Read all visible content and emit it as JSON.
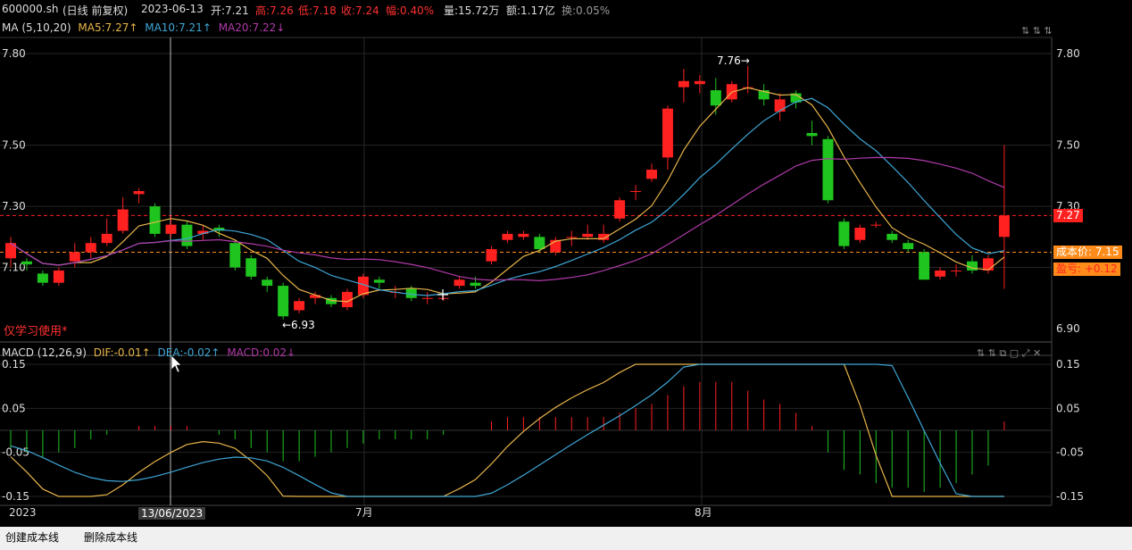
{
  "info": {
    "symbol": "600000.sh",
    "period": "(日线 前复权)",
    "date": "2023-06-13",
    "open": "开:7.21",
    "high": "高:7.26",
    "low": "低:7.18",
    "close": "收:7.24",
    "change": "幅:0.40%",
    "volume": "量:15.72万",
    "amount": "额:1.17亿",
    "turnover": "换:0.05%"
  },
  "ma_legend": {
    "title": "MA (5,10,20)",
    "ma5": "MA5:7.27↑",
    "ma10": "MA10:7.21↑",
    "ma20": "MA20:7.22↓"
  },
  "macd_legend": {
    "title": "MACD (12,26,9)",
    "dif": "DIF:-0.01↑",
    "dea": "DEA:-0.02↑",
    "macd": "MACD:0.02↓"
  },
  "colors": {
    "up": "#ff2020",
    "down": "#1fc41f",
    "ma5": "#e8b54a",
    "ma10": "#3ea6d6",
    "ma20": "#b03aa8",
    "cost": "#ff8c1a",
    "last": "#ff2020"
  },
  "annotations": {
    "high_label": "7.76→",
    "low_label": "←6.93",
    "watermark": "仅学习使用*",
    "cross_date": "13/06/2023",
    "last_price": "7.27",
    "cost_price": "成本价: 7.15",
    "profit": "盈亏: +0.12"
  },
  "buttons": {
    "create_cost_line": "创建成本线",
    "delete_cost_line": "删除成本线"
  },
  "chart_data": {
    "type": "candlestick",
    "price_axis": {
      "ticks": [
        "7.80",
        "7.50",
        "7.30",
        "7.10",
        "6.90"
      ],
      "ylim": [
        6.88,
        7.8
      ]
    },
    "macd_axis": {
      "ticks": [
        "0.15",
        "0.05",
        "-0.05",
        "-0.15"
      ],
      "ylim": [
        -0.15,
        0.15
      ]
    },
    "x_labels": [
      "2023",
      "7月",
      "8月"
    ],
    "candles": [
      [
        7.13,
        7.18,
        7.2,
        7.1
      ],
      [
        7.12,
        7.11,
        7.13,
        7.09
      ],
      [
        7.08,
        7.05,
        7.09,
        7.04
      ],
      [
        7.05,
        7.09,
        7.1,
        7.04
      ],
      [
        7.12,
        7.15,
        7.18,
        7.1
      ],
      [
        7.15,
        7.18,
        7.2,
        7.13
      ],
      [
        7.18,
        7.21,
        7.26,
        7.17
      ],
      [
        7.22,
        7.29,
        7.33,
        7.21
      ],
      [
        7.34,
        7.35,
        7.36,
        7.31
      ],
      [
        7.3,
        7.21,
        7.31,
        7.2
      ],
      [
        7.21,
        7.24,
        7.27,
        7.2
      ],
      [
        7.24,
        7.17,
        7.25,
        7.16
      ],
      [
        7.21,
        7.22,
        7.24,
        7.19
      ],
      [
        7.23,
        7.22,
        7.24,
        7.2
      ],
      [
        7.18,
        7.1,
        7.19,
        7.09
      ],
      [
        7.13,
        7.07,
        7.14,
        7.06
      ],
      [
        7.06,
        7.04,
        7.07,
        7.02
      ],
      [
        7.04,
        6.94,
        7.05,
        6.93
      ],
      [
        6.96,
        6.99,
        7.0,
        6.95
      ],
      [
        7.0,
        7.01,
        7.02,
        6.98
      ],
      [
        7.0,
        6.98,
        7.01,
        6.97
      ],
      [
        6.97,
        7.02,
        7.03,
        6.96
      ],
      [
        7.01,
        7.07,
        7.08,
        7.0
      ],
      [
        7.06,
        7.05,
        7.07,
        7.03
      ],
      [
        7.02,
        7.02,
        7.04,
        7.0
      ],
      [
        7.03,
        7.0,
        7.04,
        6.99
      ],
      [
        7.0,
        7.0,
        7.02,
        6.98
      ],
      [
        7.0,
        7.0,
        7.01,
        6.99
      ],
      [
        7.04,
        7.06,
        7.07,
        7.03
      ],
      [
        7.05,
        7.04,
        7.07,
        7.03
      ],
      [
        7.12,
        7.16,
        7.17,
        7.11
      ],
      [
        7.19,
        7.21,
        7.22,
        7.18
      ],
      [
        7.2,
        7.21,
        7.22,
        7.19
      ],
      [
        7.2,
        7.16,
        7.21,
        7.15
      ],
      [
        7.15,
        7.19,
        7.2,
        7.14
      ],
      [
        7.2,
        7.2,
        7.22,
        7.17
      ],
      [
        7.2,
        7.21,
        7.24,
        7.19
      ],
      [
        7.19,
        7.21,
        7.24,
        7.18
      ],
      [
        7.26,
        7.32,
        7.33,
        7.25
      ],
      [
        7.35,
        7.35,
        7.37,
        7.32
      ],
      [
        7.39,
        7.42,
        7.44,
        7.38
      ],
      [
        7.46,
        7.62,
        7.63,
        7.42
      ],
      [
        7.69,
        7.71,
        7.75,
        7.64
      ],
      [
        7.7,
        7.71,
        7.73,
        7.67
      ],
      [
        7.68,
        7.63,
        7.72,
        7.6
      ],
      [
        7.65,
        7.7,
        7.71,
        7.64
      ],
      [
        7.69,
        7.69,
        7.76,
        7.67
      ],
      [
        7.68,
        7.65,
        7.7,
        7.63
      ],
      [
        7.61,
        7.65,
        7.67,
        7.58
      ],
      [
        7.67,
        7.64,
        7.68,
        7.62
      ],
      [
        7.54,
        7.53,
        7.58,
        7.5
      ],
      [
        7.52,
        7.32,
        7.53,
        7.31
      ],
      [
        7.25,
        7.17,
        7.26,
        7.16
      ],
      [
        7.19,
        7.23,
        7.24,
        7.18
      ],
      [
        7.24,
        7.24,
        7.25,
        7.23
      ],
      [
        7.21,
        7.19,
        7.22,
        7.18
      ],
      [
        7.18,
        7.16,
        7.19,
        7.15
      ],
      [
        7.15,
        7.06,
        7.16,
        7.06
      ],
      [
        7.07,
        7.09,
        7.1,
        7.06
      ],
      [
        7.09,
        7.09,
        7.11,
        7.07
      ],
      [
        7.12,
        7.09,
        7.14,
        7.08
      ],
      [
        7.09,
        7.13,
        7.14,
        7.08
      ],
      [
        7.2,
        7.27,
        7.5,
        7.03
      ]
    ],
    "macd_hist": [
      -0.04,
      -0.05,
      -0.06,
      -0.05,
      -0.04,
      -0.02,
      -0.01,
      0.0,
      0.01,
      0.01,
      0.01,
      0.01,
      0.0,
      -0.01,
      -0.02,
      -0.04,
      -0.05,
      -0.07,
      -0.07,
      -0.06,
      -0.05,
      -0.04,
      -0.03,
      -0.02,
      -0.02,
      -0.02,
      -0.02,
      -0.01,
      0.0,
      0.0,
      0.02,
      0.03,
      0.03,
      0.03,
      0.03,
      0.03,
      0.03,
      0.03,
      0.04,
      0.05,
      0.06,
      0.08,
      0.1,
      0.11,
      0.11,
      0.11,
      0.09,
      0.07,
      0.06,
      0.04,
      0.01,
      -0.05,
      -0.09,
      -0.1,
      -0.12,
      -0.13,
      -0.13,
      -0.14,
      -0.13,
      -0.12,
      -0.1,
      -0.08,
      0.02
    ]
  }
}
